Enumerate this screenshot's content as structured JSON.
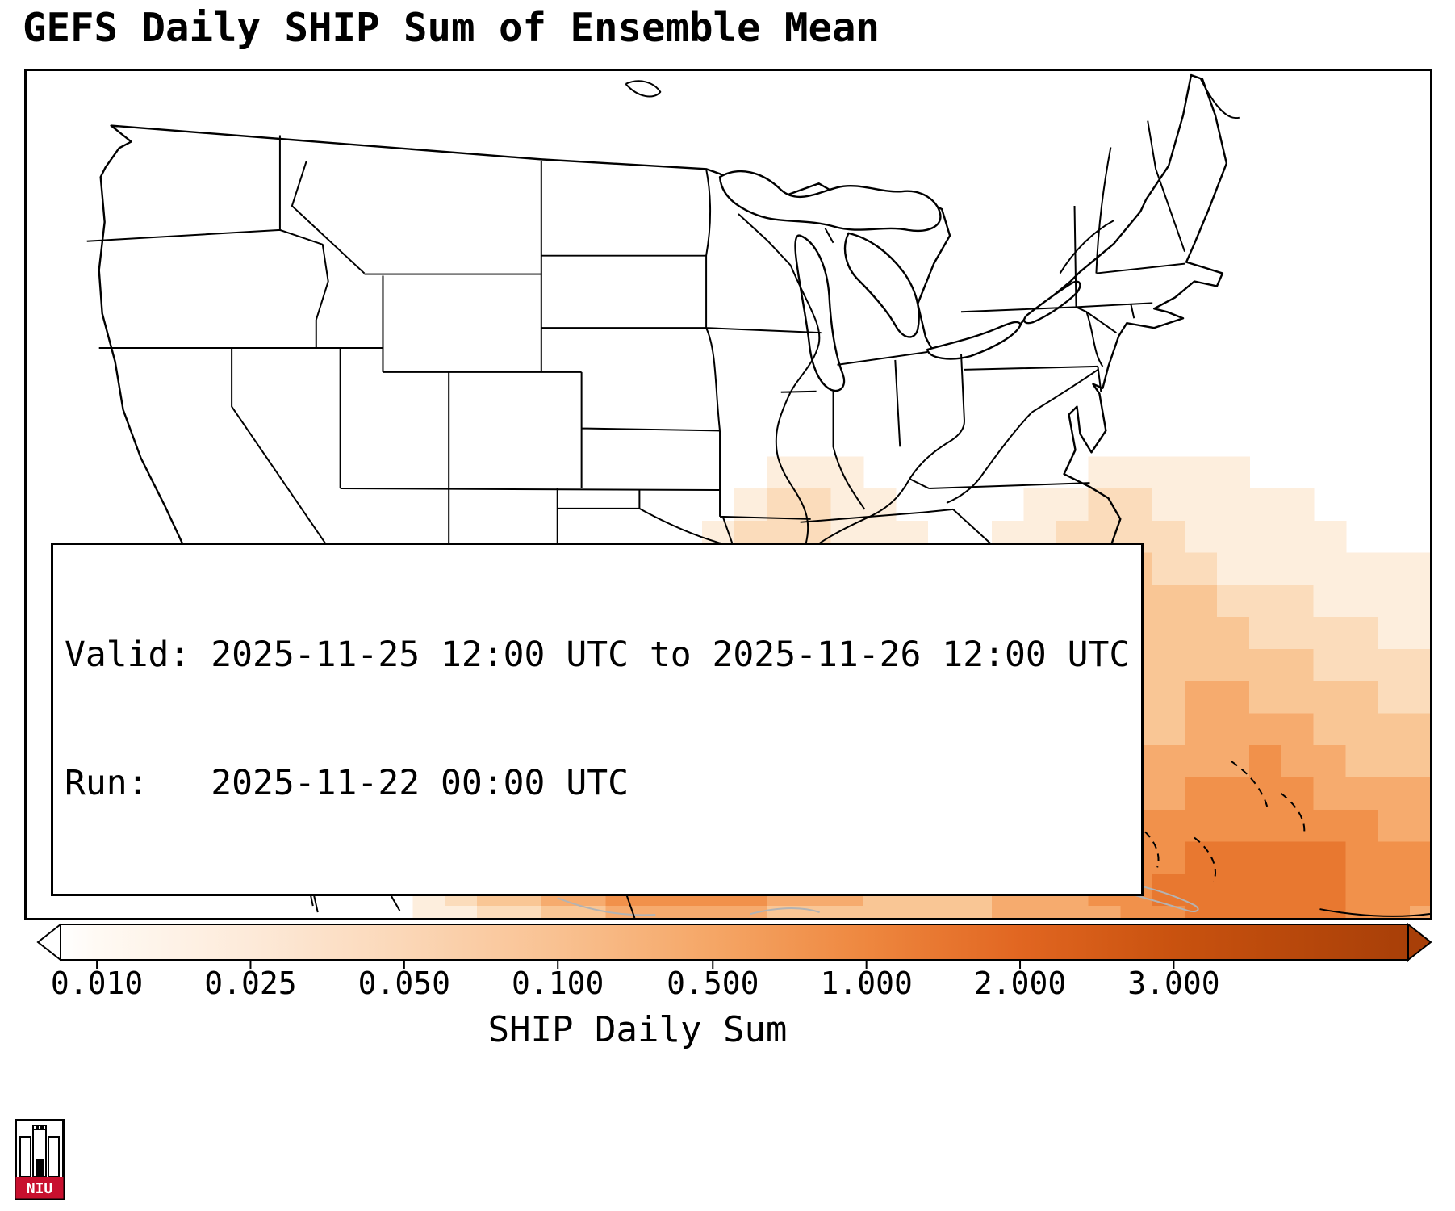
{
  "title": "GEFS Daily SHIP Sum of Ensemble Mean",
  "info": {
    "valid_line": "Valid: 2025-11-25 12:00 UTC to 2025-11-26 12:00 UTC",
    "run_line": "Run:   2025-11-22 00:00 UTC"
  },
  "colorbar": {
    "label": "SHIP Daily Sum",
    "under_color": "#ffffff",
    "over_color": "#a83f08",
    "ticks": [
      {
        "label": "0.010",
        "pos": 0.027
      },
      {
        "label": "0.025",
        "pos": 0.141
      },
      {
        "label": "0.050",
        "pos": 0.255
      },
      {
        "label": "0.100",
        "pos": 0.369
      },
      {
        "label": "0.500",
        "pos": 0.484
      },
      {
        "label": "1.000",
        "pos": 0.598
      },
      {
        "label": "2.000",
        "pos": 0.712
      },
      {
        "label": "3.000",
        "pos": 0.826
      }
    ],
    "gradient": [
      [
        0,
        "#ffffff"
      ],
      [
        0.027,
        "#fffaf4"
      ],
      [
        0.141,
        "#fdead9"
      ],
      [
        0.255,
        "#fbd7b7"
      ],
      [
        0.369,
        "#f9c191"
      ],
      [
        0.484,
        "#f5a666"
      ],
      [
        0.598,
        "#ee873f"
      ],
      [
        0.712,
        "#e16621"
      ],
      [
        0.826,
        "#c9520f"
      ],
      [
        1,
        "#a83f08"
      ]
    ]
  },
  "logo": {
    "text": "NIU",
    "color": "#c8102e"
  },
  "heatmap": {
    "cell_size": 40,
    "palette": {
      "1": "#fdeedd",
      "2": "#fbdcbb",
      "3": "#f9c695",
      "4": "#f6ab6e",
      "5": "#f1914b",
      "6": "#e87830",
      "7": "#d55e1a",
      "8": "#b94a10"
    },
    "grid": [
      "00000000000000000000000000000000000000000000",
      "00000000000000000000000000000000000000000000",
      "00000000000000000000000000000000000000000000",
      "00000000000000000000000000000000000000000000",
      "00000000000000000000000000000000000000000000",
      "00000000000000000000000000000000000000000000",
      "00000000000000000000000000000000000000000000",
      "00000000000000000000000000000000000000000000",
      "00000000000000000000000000000000000000000000",
      "00000000000000000000000000000000000000000000",
      "00000000000000000000000000000000000000000000",
      "00000000000000000000000000000000000000000000",
      "00000000000000000000000111000000011111000000",
      "00000000000000000000001221100001122111110000",
      "00000000000000000000012221110011222211111000",
      "00000000000000000000122222110011223221111111",
      "00000000000000000001233322110011223332221111",
      "00000000000000000123444322111012233333222211",
      "00000000000000011234444332121111223333332222",
      "00000000000000123455544332222112233344333322",
      "00000000000001245666554332322211333344443333",
      "00000000000002356778665443433322334444544333",
      "00000000000012456788765544433332344455554444",
      "00000000000012345677665555443322445555555544",
      "00000000000012345566655554433334455566666555",
      "00000000000012334455555444333344455666666555",
      "00000000000011223344444333333344445566666554"
    ]
  }
}
